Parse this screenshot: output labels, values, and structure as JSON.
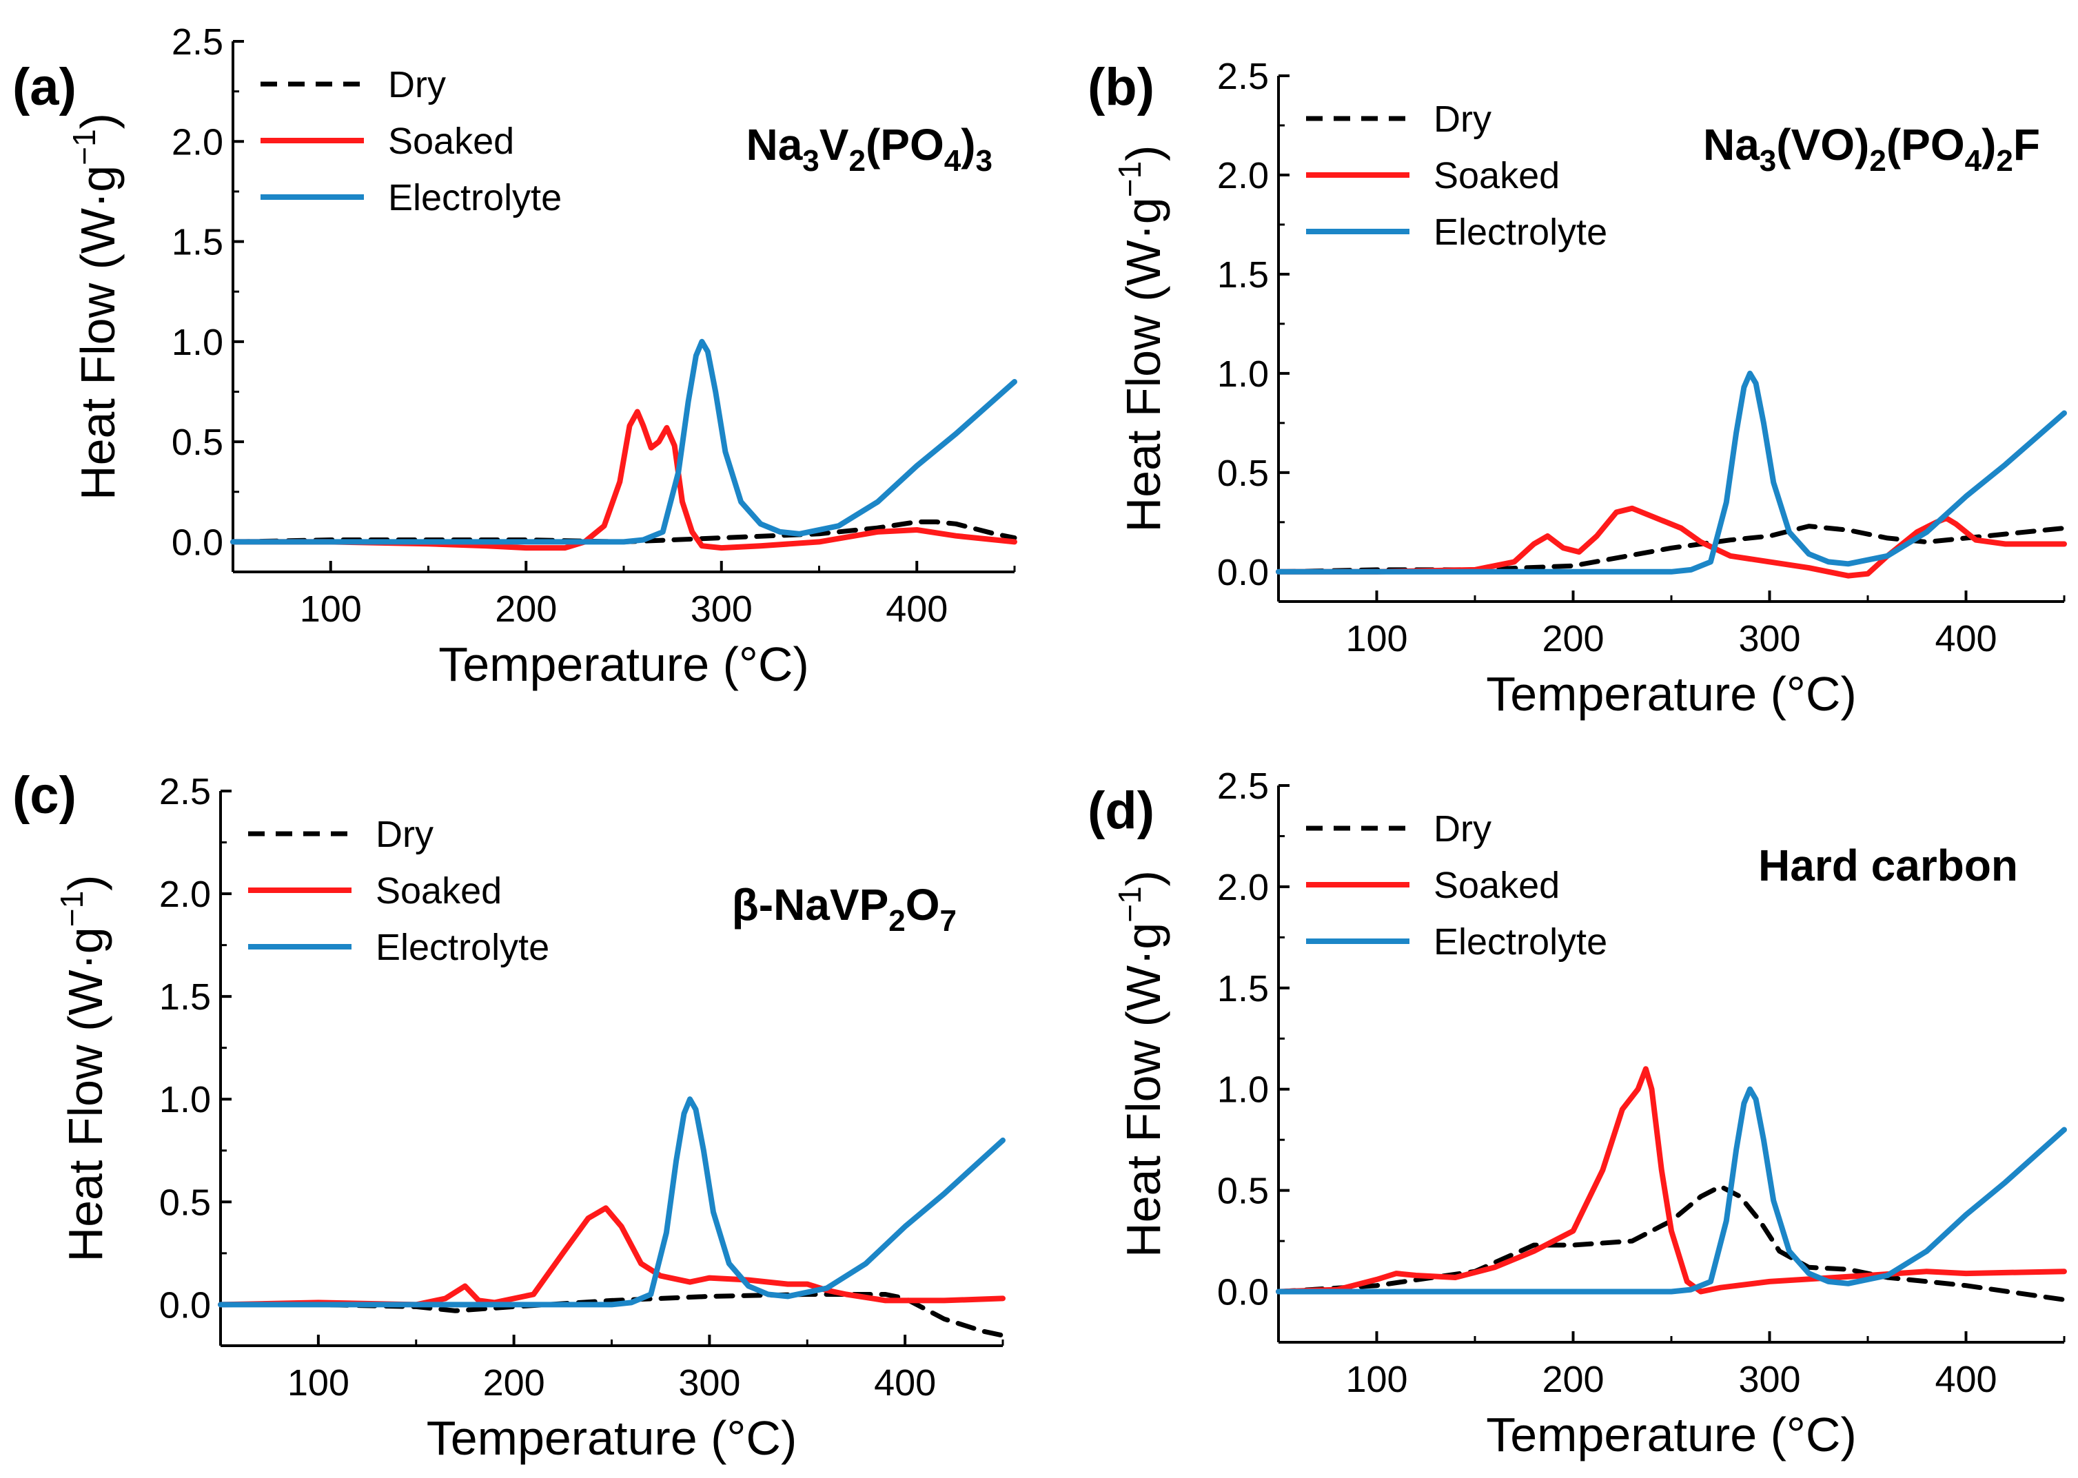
{
  "chart_data": [
    {
      "type": "line",
      "panel_label": "(a)",
      "title": "Na3V2(PO4)3",
      "title_parts": [
        {
          "t": "Na"
        },
        {
          "t": "3",
          "sub": true
        },
        {
          "t": "V"
        },
        {
          "t": "2",
          "sub": true
        },
        {
          "t": "(PO"
        },
        {
          "t": "4",
          "sub": true
        },
        {
          "t": ")"
        },
        {
          "t": "3",
          "sub": true
        }
      ],
      "xlabel": "Temperature (°C)",
      "ylabel": "Heat Flow (W·g⁻¹)",
      "ylabel_main": "Heat Flow (W·g",
      "ylabel_sup": "−1",
      "ylabel_end": ")",
      "xlim": [
        50,
        450
      ],
      "ylim": [
        -0.15,
        2.5
      ],
      "xticks": [
        100,
        200,
        300,
        400
      ],
      "xtick_labels": [
        "100",
        "200",
        "300",
        "400"
      ],
      "yticks": [
        0,
        0.5,
        1,
        1.5,
        2,
        2.5
      ],
      "ytick_labels": [
        "0.0",
        "0.5",
        "1.0",
        "1.5",
        "2.0",
        "2.5"
      ],
      "legend": "top-left",
      "series": [
        {
          "name": "Dry",
          "color": "#000000",
          "dash": true,
          "x": [
            50,
            100,
            150,
            200,
            250,
            300,
            350,
            380,
            400,
            410,
            420,
            440,
            450
          ],
          "y": [
            0,
            0.01,
            0.01,
            0.01,
            0,
            0.02,
            0.04,
            0.07,
            0.1,
            0.1,
            0.09,
            0.04,
            0.02
          ]
        },
        {
          "name": "Soaked",
          "color": "#ff1a1a",
          "dash": false,
          "x": [
            50,
            100,
            150,
            180,
            200,
            220,
            230,
            240,
            248,
            253,
            257,
            260,
            264,
            268,
            272,
            276,
            280,
            285,
            290,
            300,
            320,
            350,
            380,
            400,
            420,
            450
          ],
          "y": [
            0,
            0,
            -0.01,
            -0.02,
            -0.03,
            -0.03,
            0,
            0.08,
            0.3,
            0.58,
            0.65,
            0.58,
            0.47,
            0.5,
            0.57,
            0.48,
            0.2,
            0.05,
            -0.02,
            -0.03,
            -0.02,
            0,
            0.05,
            0.06,
            0.03,
            0
          ]
        },
        {
          "name": "Electrolyte",
          "color": "#1c86c7",
          "dash": false,
          "x": [
            50,
            100,
            200,
            250,
            260,
            270,
            278,
            283,
            287,
            290,
            293,
            297,
            302,
            310,
            320,
            330,
            340,
            360,
            380,
            400,
            420,
            450
          ],
          "y": [
            0,
            0,
            0,
            0,
            0.01,
            0.05,
            0.35,
            0.7,
            0.93,
            1.0,
            0.95,
            0.75,
            0.45,
            0.2,
            0.09,
            0.05,
            0.04,
            0.08,
            0.2,
            0.38,
            0.54,
            0.8
          ]
        }
      ]
    },
    {
      "type": "line",
      "panel_label": "(b)",
      "title": "Na3(VO)2(PO4)2F",
      "title_parts": [
        {
          "t": "Na"
        },
        {
          "t": "3",
          "sub": true
        },
        {
          "t": "(VO)"
        },
        {
          "t": "2",
          "sub": true
        },
        {
          "t": "(PO"
        },
        {
          "t": "4",
          "sub": true
        },
        {
          "t": ")"
        },
        {
          "t": "2",
          "sub": true
        },
        {
          "t": "F"
        }
      ],
      "xlabel": "Temperature (°C)",
      "ylabel": "Heat Flow (W·g⁻¹)",
      "ylabel_main": "Heat Flow (W·g",
      "ylabel_sup": "−1",
      "ylabel_end": ")",
      "xlim": [
        50,
        450
      ],
      "ylim": [
        -0.15,
        2.5
      ],
      "xticks": [
        100,
        200,
        300,
        400
      ],
      "xtick_labels": [
        "100",
        "200",
        "300",
        "400"
      ],
      "yticks": [
        0,
        0.5,
        1,
        1.5,
        2,
        2.5
      ],
      "ytick_labels": [
        "0.0",
        "0.5",
        "1.0",
        "1.5",
        "2.0",
        "2.5"
      ],
      "legend": "top-left",
      "series": [
        {
          "name": "Dry",
          "color": "#000000",
          "dash": true,
          "x": [
            50,
            100,
            150,
            200,
            250,
            280,
            300,
            320,
            340,
            360,
            380,
            400,
            430,
            450
          ],
          "y": [
            0,
            0.01,
            0.01,
            0.03,
            0.12,
            0.16,
            0.18,
            0.23,
            0.21,
            0.17,
            0.15,
            0.17,
            0.2,
            0.22
          ]
        },
        {
          "name": "Soaked",
          "color": "#ff1a1a",
          "dash": false,
          "x": [
            50,
            100,
            150,
            170,
            180,
            187,
            195,
            203,
            212,
            222,
            230,
            240,
            255,
            265,
            280,
            300,
            320,
            340,
            350,
            360,
            375,
            385,
            390,
            395,
            405,
            420,
            450
          ],
          "y": [
            0,
            0,
            0.01,
            0.05,
            0.14,
            0.18,
            0.12,
            0.1,
            0.18,
            0.3,
            0.32,
            0.28,
            0.22,
            0.15,
            0.08,
            0.05,
            0.02,
            -0.02,
            -0.01,
            0.08,
            0.2,
            0.25,
            0.27,
            0.24,
            0.16,
            0.14,
            0.14
          ]
        },
        {
          "name": "Electrolyte",
          "color": "#1c86c7",
          "dash": false,
          "x": [
            50,
            100,
            200,
            250,
            260,
            270,
            278,
            283,
            287,
            290,
            293,
            297,
            302,
            310,
            320,
            330,
            340,
            360,
            380,
            400,
            420,
            450
          ],
          "y": [
            0,
            0,
            0,
            0,
            0.01,
            0.05,
            0.35,
            0.7,
            0.93,
            1.0,
            0.95,
            0.75,
            0.45,
            0.2,
            0.09,
            0.05,
            0.04,
            0.08,
            0.2,
            0.38,
            0.54,
            0.8
          ]
        }
      ]
    },
    {
      "type": "line",
      "panel_label": "(c)",
      "title": "β-NaVP2O7",
      "title_parts": [
        {
          "t": "β-NaVP"
        },
        {
          "t": "2",
          "sub": true
        },
        {
          "t": "O"
        },
        {
          "t": "7",
          "sub": true
        }
      ],
      "xlabel": "Temperature (°C)",
      "ylabel": "Heat Flow (W·g⁻¹)",
      "ylabel_main": "Heat Flow (W·g",
      "ylabel_sup": "−1",
      "ylabel_end": ")",
      "xlim": [
        50,
        450
      ],
      "ylim": [
        -0.2,
        2.5
      ],
      "xticks": [
        100,
        200,
        300,
        400
      ],
      "xtick_labels": [
        "100",
        "200",
        "300",
        "400"
      ],
      "yticks": [
        0,
        0.5,
        1,
        1.5,
        2,
        2.5
      ],
      "ytick_labels": [
        "0.0",
        "0.5",
        "1.0",
        "1.5",
        "2.0",
        "2.5"
      ],
      "legend": "top-left",
      "series": [
        {
          "name": "Dry",
          "color": "#000000",
          "dash": true,
          "x": [
            50,
            100,
            150,
            170,
            200,
            250,
            300,
            350,
            390,
            400,
            410,
            420,
            440,
            450
          ],
          "y": [
            0,
            0,
            -0.01,
            -0.03,
            -0.01,
            0.02,
            0.04,
            0.05,
            0.05,
            0.03,
            -0.02,
            -0.07,
            -0.13,
            -0.15
          ]
        },
        {
          "name": "Soaked",
          "color": "#ff1a1a",
          "dash": false,
          "x": [
            50,
            100,
            150,
            165,
            175,
            182,
            190,
            210,
            225,
            238,
            247,
            255,
            265,
            275,
            290,
            300,
            320,
            340,
            350,
            360,
            370,
            390,
            420,
            450
          ],
          "y": [
            0,
            0.01,
            0,
            0.03,
            0.09,
            0.02,
            0.01,
            0.05,
            0.25,
            0.42,
            0.47,
            0.38,
            0.2,
            0.14,
            0.11,
            0.13,
            0.12,
            0.1,
            0.1,
            0.07,
            0.05,
            0.02,
            0.02,
            0.03
          ]
        },
        {
          "name": "Electrolyte",
          "color": "#1c86c7",
          "dash": false,
          "x": [
            50,
            100,
            200,
            250,
            260,
            270,
            278,
            283,
            287,
            290,
            293,
            297,
            302,
            310,
            320,
            330,
            340,
            360,
            380,
            400,
            420,
            450
          ],
          "y": [
            0,
            0,
            0,
            0,
            0.01,
            0.05,
            0.35,
            0.7,
            0.93,
            1.0,
            0.95,
            0.75,
            0.45,
            0.2,
            0.09,
            0.05,
            0.04,
            0.08,
            0.2,
            0.38,
            0.54,
            0.8
          ]
        }
      ]
    },
    {
      "type": "line",
      "panel_label": "(d)",
      "title": "Hard carbon",
      "title_parts": [
        {
          "t": "Hard carbon"
        }
      ],
      "xlabel": "Temperature (°C)",
      "ylabel": "Heat Flow (W·g⁻¹)",
      "ylabel_main": "Heat Flow (W·g",
      "ylabel_sup": "−1",
      "ylabel_end": ")",
      "xlim": [
        50,
        450
      ],
      "ylim": [
        -0.25,
        2.5
      ],
      "xticks": [
        100,
        200,
        300,
        400
      ],
      "xtick_labels": [
        "100",
        "200",
        "300",
        "400"
      ],
      "yticks": [
        0,
        0.5,
        1,
        1.5,
        2,
        2.5
      ],
      "ytick_labels": [
        "0.0",
        "0.5",
        "1.0",
        "1.5",
        "2.0",
        "2.5"
      ],
      "legend": "top-left",
      "series": [
        {
          "name": "Dry",
          "color": "#000000",
          "dash": true,
          "x": [
            50,
            100,
            150,
            180,
            200,
            230,
            250,
            265,
            275,
            285,
            295,
            305,
            320,
            340,
            360,
            400,
            450
          ],
          "y": [
            0,
            0.03,
            0.1,
            0.23,
            0.23,
            0.25,
            0.35,
            0.47,
            0.52,
            0.47,
            0.35,
            0.2,
            0.12,
            0.11,
            0.07,
            0.03,
            -0.04
          ]
        },
        {
          "name": "Soaked",
          "color": "#ff1a1a",
          "dash": false,
          "x": [
            50,
            80,
            100,
            110,
            120,
            140,
            160,
            180,
            200,
            215,
            225,
            233,
            237,
            240,
            245,
            250,
            258,
            265,
            275,
            300,
            350,
            380,
            400,
            450
          ],
          "y": [
            0,
            0.01,
            0.06,
            0.09,
            0.08,
            0.07,
            0.12,
            0.2,
            0.3,
            0.6,
            0.9,
            1.0,
            1.1,
            1.0,
            0.6,
            0.3,
            0.05,
            0,
            0.02,
            0.05,
            0.08,
            0.1,
            0.09,
            0.1
          ]
        },
        {
          "name": "Electrolyte",
          "color": "#1c86c7",
          "dash": false,
          "x": [
            50,
            100,
            200,
            250,
            260,
            270,
            278,
            283,
            287,
            290,
            293,
            297,
            302,
            310,
            320,
            330,
            340,
            360,
            380,
            400,
            420,
            450
          ],
          "y": [
            0,
            0,
            0,
            0,
            0.01,
            0.05,
            0.35,
            0.7,
            0.93,
            1.0,
            0.95,
            0.75,
            0.45,
            0.2,
            0.09,
            0.05,
            0.04,
            0.08,
            0.2,
            0.38,
            0.54,
            0.8
          ]
        }
      ]
    }
  ]
}
